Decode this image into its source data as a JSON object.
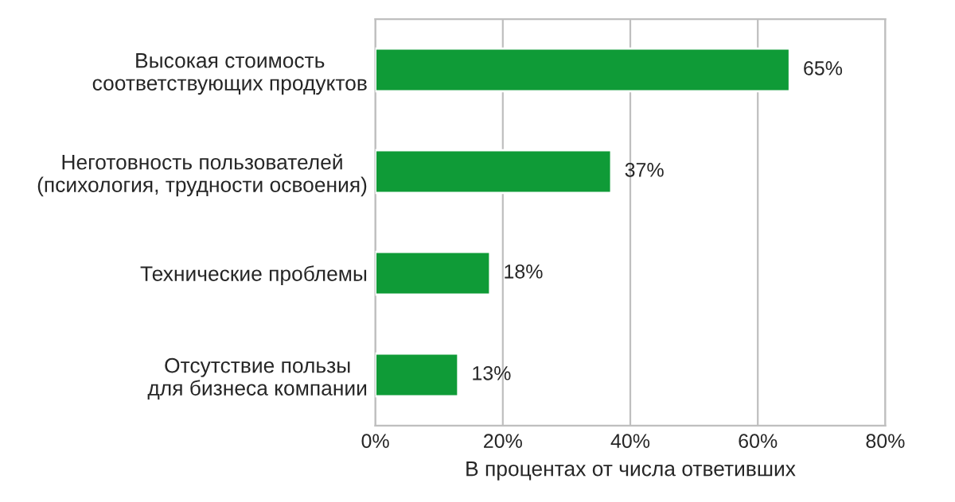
{
  "chart_data": {
    "type": "bar",
    "orientation": "horizontal",
    "categories": [
      "Высокая стоимость\nсоответствующих продуктов",
      "Неготовность пользователей\n(психология, трудности освоения)",
      "Технические проблемы",
      "Отсутствие пользы\nдля бизнеса компании"
    ],
    "values": [
      65,
      37,
      18,
      13
    ],
    "color": "#0f9b37",
    "value_labels": [
      "65%",
      "37%",
      "18%",
      "13%"
    ],
    "xlabel": "В процентах от числа ответивших",
    "xlim": [
      0,
      80
    ],
    "xticks": [
      {
        "value": 0,
        "label": "0%"
      },
      {
        "value": 20,
        "label": "20%"
      },
      {
        "value": 40,
        "label": "40%"
      },
      {
        "value": 60,
        "label": "60%"
      },
      {
        "value": 80,
        "label": "80%"
      }
    ],
    "grid": "x"
  }
}
